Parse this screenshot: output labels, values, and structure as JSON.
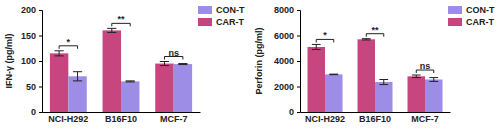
{
  "chart_data": [
    {
      "type": "bar",
      "ylabel": "IFN-γ (pg/ml)",
      "categories": [
        "NCI-H292",
        "B16F10",
        "MCF-7"
      ],
      "series": [
        {
          "name": "CAR-T",
          "color": "#c8467f",
          "values": [
            115,
            160,
            95
          ],
          "errors": [
            5,
            4,
            4
          ]
        },
        {
          "name": "CON-T",
          "color": "#9d8de6",
          "values": [
            70,
            60,
            94
          ],
          "errors": [
            9,
            1,
            1
          ]
        }
      ],
      "annotations": [
        "*",
        "**",
        "ns"
      ],
      "ylim": [
        0,
        200
      ],
      "yticks": [
        0,
        50,
        100,
        150,
        200
      ],
      "legend": "top-right"
    },
    {
      "type": "bar",
      "ylabel": "Perforin (pg/ml)",
      "categories": [
        "NCI-H292",
        "B16F10",
        "MCF-7"
      ],
      "series": [
        {
          "name": "CAR-T",
          "color": "#c8467f",
          "values": [
            5100,
            5700,
            2800
          ],
          "errors": [
            200,
            50,
            100
          ]
        },
        {
          "name": "CON-T",
          "color": "#9d8de6",
          "values": [
            2950,
            2350,
            2550
          ],
          "errors": [
            20,
            200,
            150
          ]
        }
      ],
      "annotations": [
        "*",
        "**",
        "ns"
      ],
      "ylim": [
        0,
        8000
      ],
      "yticks": [
        0,
        2000,
        4000,
        6000,
        8000
      ],
      "legend": "top-right"
    }
  ]
}
